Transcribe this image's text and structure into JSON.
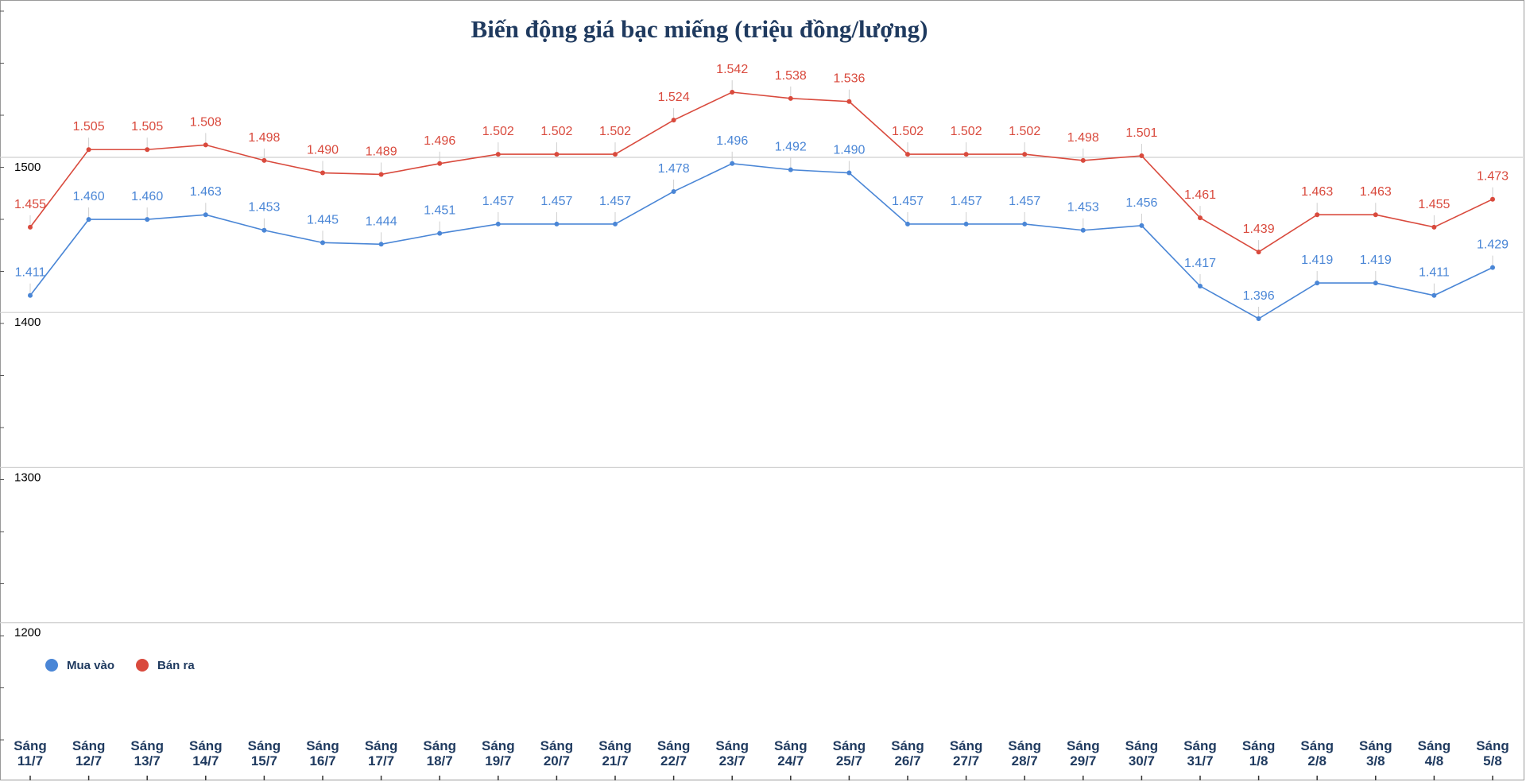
{
  "chart_data": {
    "type": "line",
    "title": "Biến động giá bạc miếng (triệu đồng/lượng)",
    "xlabel": "",
    "ylabel": "",
    "ylim": [
      1100,
      1550
    ],
    "yticks": [
      1200,
      1300,
      1400,
      1500
    ],
    "grid": true,
    "legend_position": "bottom-left",
    "categories": [
      [
        "Sáng",
        "11/7"
      ],
      [
        "Sáng",
        "12/7"
      ],
      [
        "Sáng",
        "13/7"
      ],
      [
        "Sáng",
        "14/7"
      ],
      [
        "Sáng",
        "15/7"
      ],
      [
        "Sáng",
        "16/7"
      ],
      [
        "Sáng",
        "17/7"
      ],
      [
        "Sáng",
        "18/7"
      ],
      [
        "Sáng",
        "19/7"
      ],
      [
        "Sáng",
        "20/7"
      ],
      [
        "Sáng",
        "21/7"
      ],
      [
        "Sáng",
        "22/7"
      ],
      [
        "Sáng",
        "23/7"
      ],
      [
        "Sáng",
        "24/7"
      ],
      [
        "Sáng",
        "25/7"
      ],
      [
        "Sáng",
        "26/7"
      ],
      [
        "Sáng",
        "27/7"
      ],
      [
        "Sáng",
        "28/7"
      ],
      [
        "Sáng",
        "29/7"
      ],
      [
        "Sáng",
        "30/7"
      ],
      [
        "Sáng",
        "31/7"
      ],
      [
        "Sáng",
        "1/8"
      ],
      [
        "Sáng",
        "2/8"
      ],
      [
        "Sáng",
        "3/8"
      ],
      [
        "Sáng",
        "4/8"
      ],
      [
        "Sáng",
        "5/8"
      ]
    ],
    "series": [
      {
        "name": "Mua vào",
        "color": "#4a86d6",
        "values": [
          1411,
          1460,
          1460,
          1463,
          1453,
          1445,
          1444,
          1451,
          1457,
          1457,
          1457,
          1478,
          1496,
          1492,
          1490,
          1457,
          1457,
          1457,
          1453,
          1456,
          1417,
          1396,
          1419,
          1419,
          1411,
          1429
        ],
        "labels": [
          "1.411",
          "1.460",
          "1.460",
          "1.463",
          "1.453",
          "1.445",
          "1.444",
          "1.451",
          "1.457",
          "1.457",
          "1.457",
          "1.478",
          "1.496",
          "1.492",
          "1.490",
          "1.457",
          "1.457",
          "1.457",
          "1.453",
          "1.456",
          "1.417",
          "1.396",
          "1.419",
          "1.419",
          "1.411",
          "1.429"
        ]
      },
      {
        "name": "Bán ra",
        "color": "#d94a3d",
        "values": [
          1455,
          1505,
          1505,
          1508,
          1498,
          1490,
          1489,
          1496,
          1502,
          1502,
          1502,
          1524,
          1542,
          1538,
          1536,
          1502,
          1502,
          1502,
          1498,
          1501,
          1461,
          1439,
          1463,
          1463,
          1455,
          1473
        ],
        "labels": [
          "1.455",
          "1.505",
          "1.505",
          "1.508",
          "1.498",
          "1.490",
          "1.489",
          "1.496",
          "1.502",
          "1.502",
          "1.502",
          "1.524",
          "1.542",
          "1.538",
          "1.536",
          "1.502",
          "1.502",
          "1.502",
          "1.498",
          "1.501",
          "1.461",
          "1.439",
          "1.463",
          "1.463",
          "1.455",
          "1.473"
        ]
      }
    ]
  }
}
